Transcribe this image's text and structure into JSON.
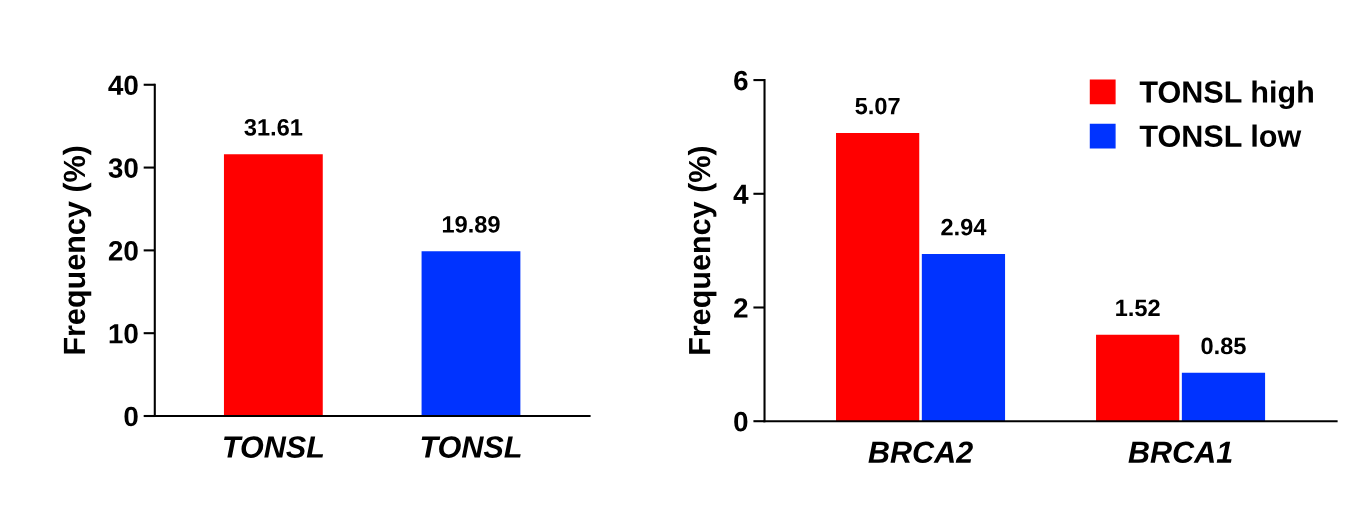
{
  "chart_data": [
    {
      "type": "bar",
      "ylabel": "Frequency (%)",
      "categories": [
        "TONSL",
        "TONSL"
      ],
      "values": [
        31.61,
        19.89
      ],
      "colors": [
        "#ff0000",
        "#0033ff"
      ],
      "ylim": [
        0,
        40
      ],
      "yticks": [
        0,
        10,
        20,
        30,
        40
      ],
      "data_labels": true,
      "grid": false,
      "legend": false
    },
    {
      "type": "bar",
      "ylabel": "Frequency (%)",
      "categories": [
        "BRCA2",
        "BRCA1"
      ],
      "series": [
        {
          "name": "TONSL high",
          "color": "#ff0000",
          "values": [
            5.07,
            1.52
          ]
        },
        {
          "name": "TONSL low",
          "color": "#0033ff",
          "values": [
            2.94,
            0.85
          ]
        }
      ],
      "ylim": [
        0,
        6
      ],
      "yticks": [
        0,
        2,
        4,
        6
      ],
      "data_labels": true,
      "grid": false,
      "legend": "top right"
    }
  ]
}
